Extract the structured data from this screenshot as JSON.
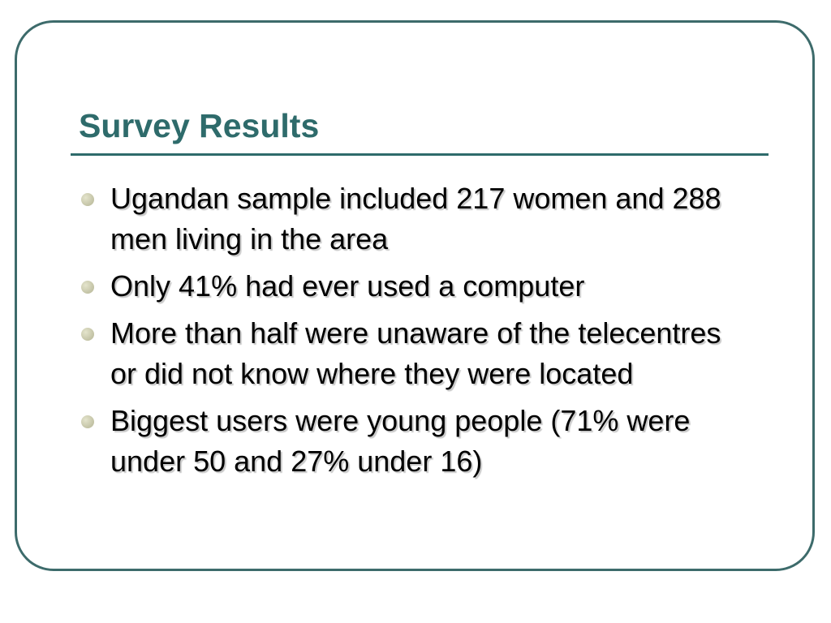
{
  "title": "Survey Results",
  "bullets": [
    "Ugandan sample included 217 women and 288 men living in the area",
    "Only 41% had ever used a computer",
    "More than half were unaware of the telecentres or did not know where they were located",
    "Biggest users were young people (71% were under 50 and 27% under 16)"
  ]
}
